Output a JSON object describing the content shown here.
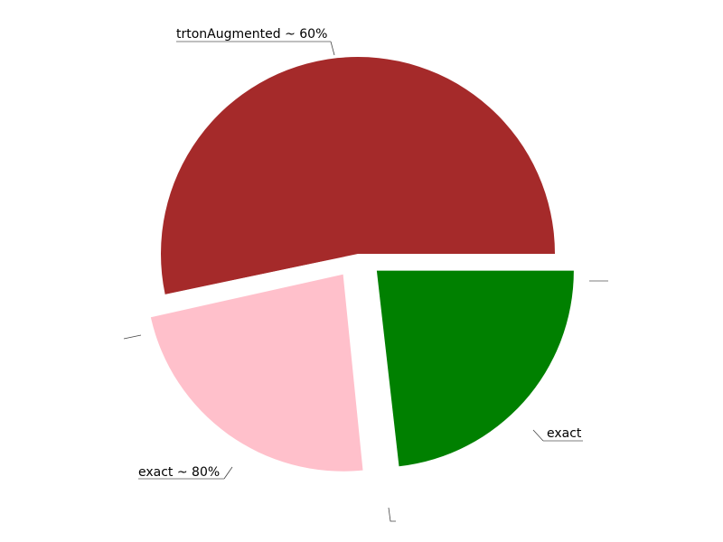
{
  "chart_data": {
    "type": "pie",
    "slices": [
      {
        "label": "trtonAugmented ~ 60%",
        "value": 53.3,
        "color": "#a52a2a",
        "exploded": false
      },
      {
        "label": "",
        "value": 0.2,
        "color": "#ffffff",
        "exploded": true
      },
      {
        "label": "exact",
        "value": 23.1,
        "color": "#ffc0cb",
        "exploded": true
      },
      {
        "label": "",
        "value": 0.2,
        "color": "#ffffff",
        "exploded": true
      },
      {
        "label": "exact ~ 80%",
        "value": 23.2,
        "color": "#008000",
        "exploded": true
      }
    ],
    "legend": "none"
  }
}
